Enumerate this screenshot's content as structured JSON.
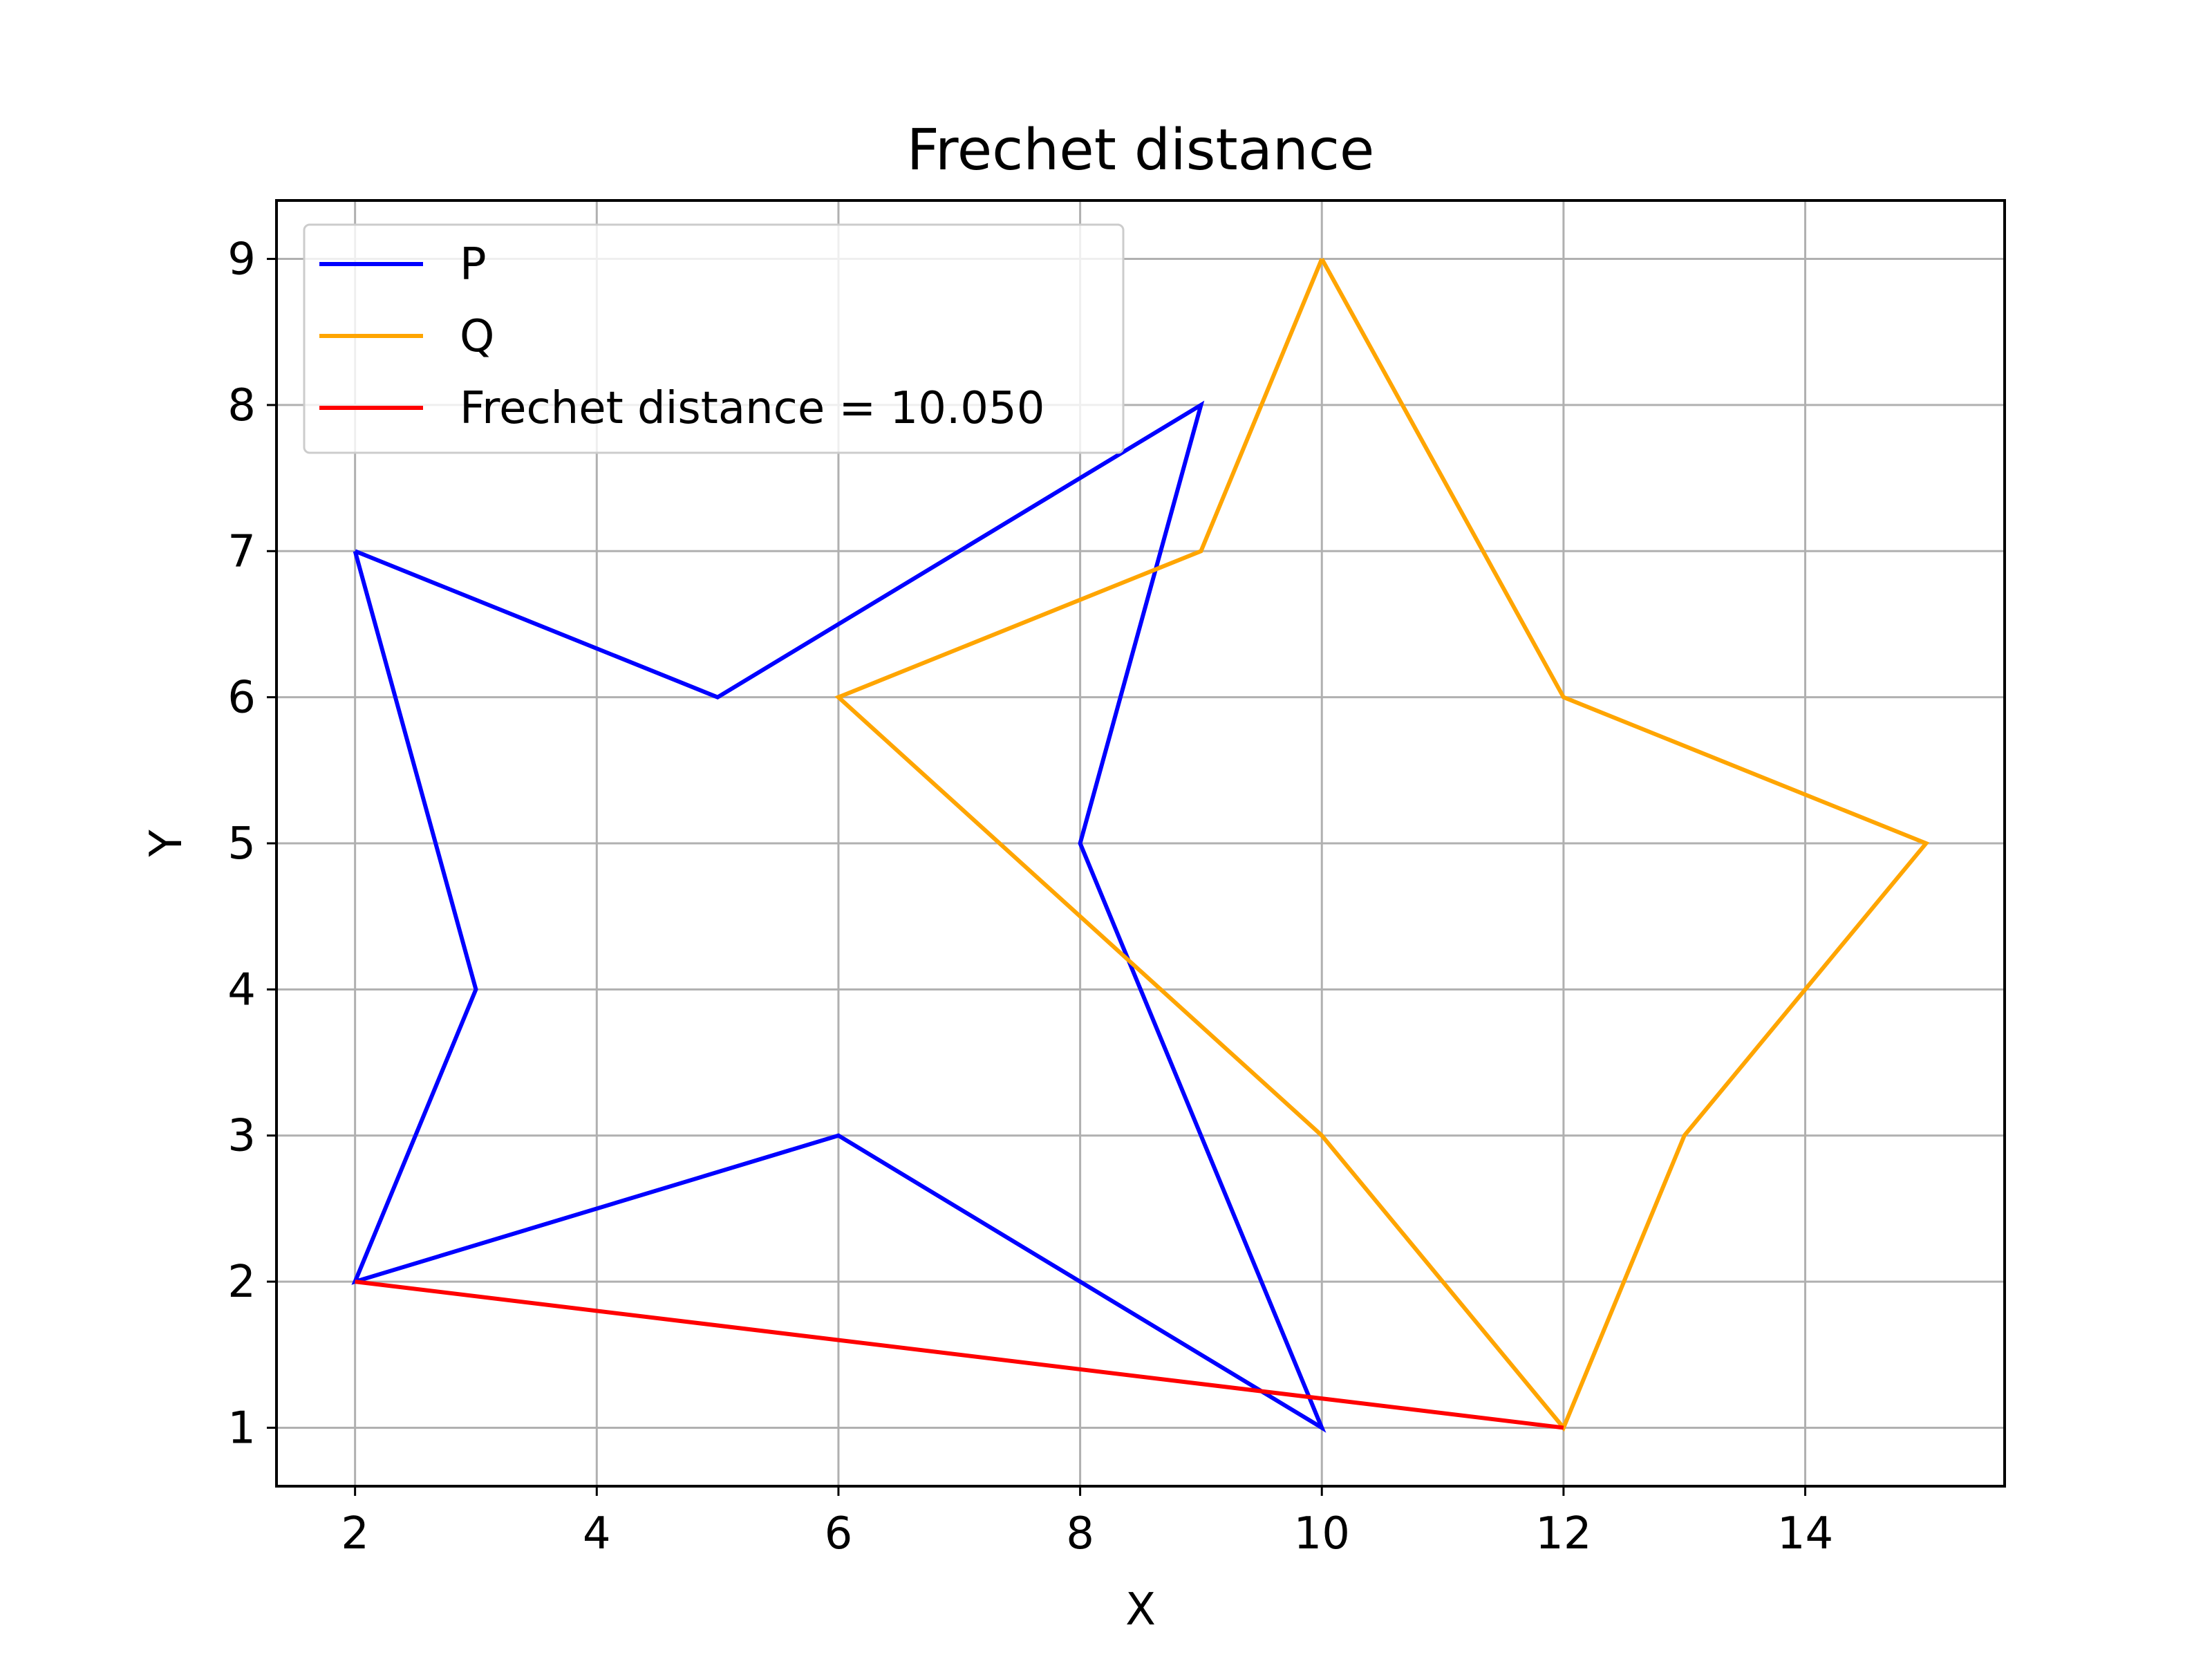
{
  "chart_data": {
    "type": "line",
    "title": "Frechet distance",
    "xlabel": "X",
    "ylabel": "Y",
    "xlim": [
      1.35,
      15.65
    ],
    "ylim": [
      0.6,
      9.4
    ],
    "xticks": [
      2,
      4,
      6,
      8,
      10,
      12,
      14
    ],
    "yticks": [
      1,
      2,
      3,
      4,
      5,
      6,
      7,
      8,
      9
    ],
    "grid": true,
    "legend_position": "upper left",
    "series": [
      {
        "name": "P",
        "color": "#0000ff",
        "points": [
          [
            2,
            7
          ],
          [
            5,
            6
          ],
          [
            9,
            8
          ],
          [
            8,
            5
          ],
          [
            10,
            1
          ],
          [
            6,
            3
          ],
          [
            2,
            2
          ],
          [
            3,
            4
          ],
          [
            2,
            7
          ]
        ]
      },
      {
        "name": "Q",
        "color": "#ffa500",
        "points": [
          [
            10,
            9
          ],
          [
            12,
            6
          ],
          [
            15,
            5
          ],
          [
            13,
            3
          ],
          [
            12,
            1
          ],
          [
            10,
            3
          ],
          [
            6,
            6
          ],
          [
            9,
            7
          ],
          [
            10,
            9
          ]
        ]
      },
      {
        "name": "Frechet distance = 10.050",
        "color": "#ff0000",
        "points": [
          [
            2,
            2
          ],
          [
            12,
            1
          ]
        ]
      }
    ]
  }
}
